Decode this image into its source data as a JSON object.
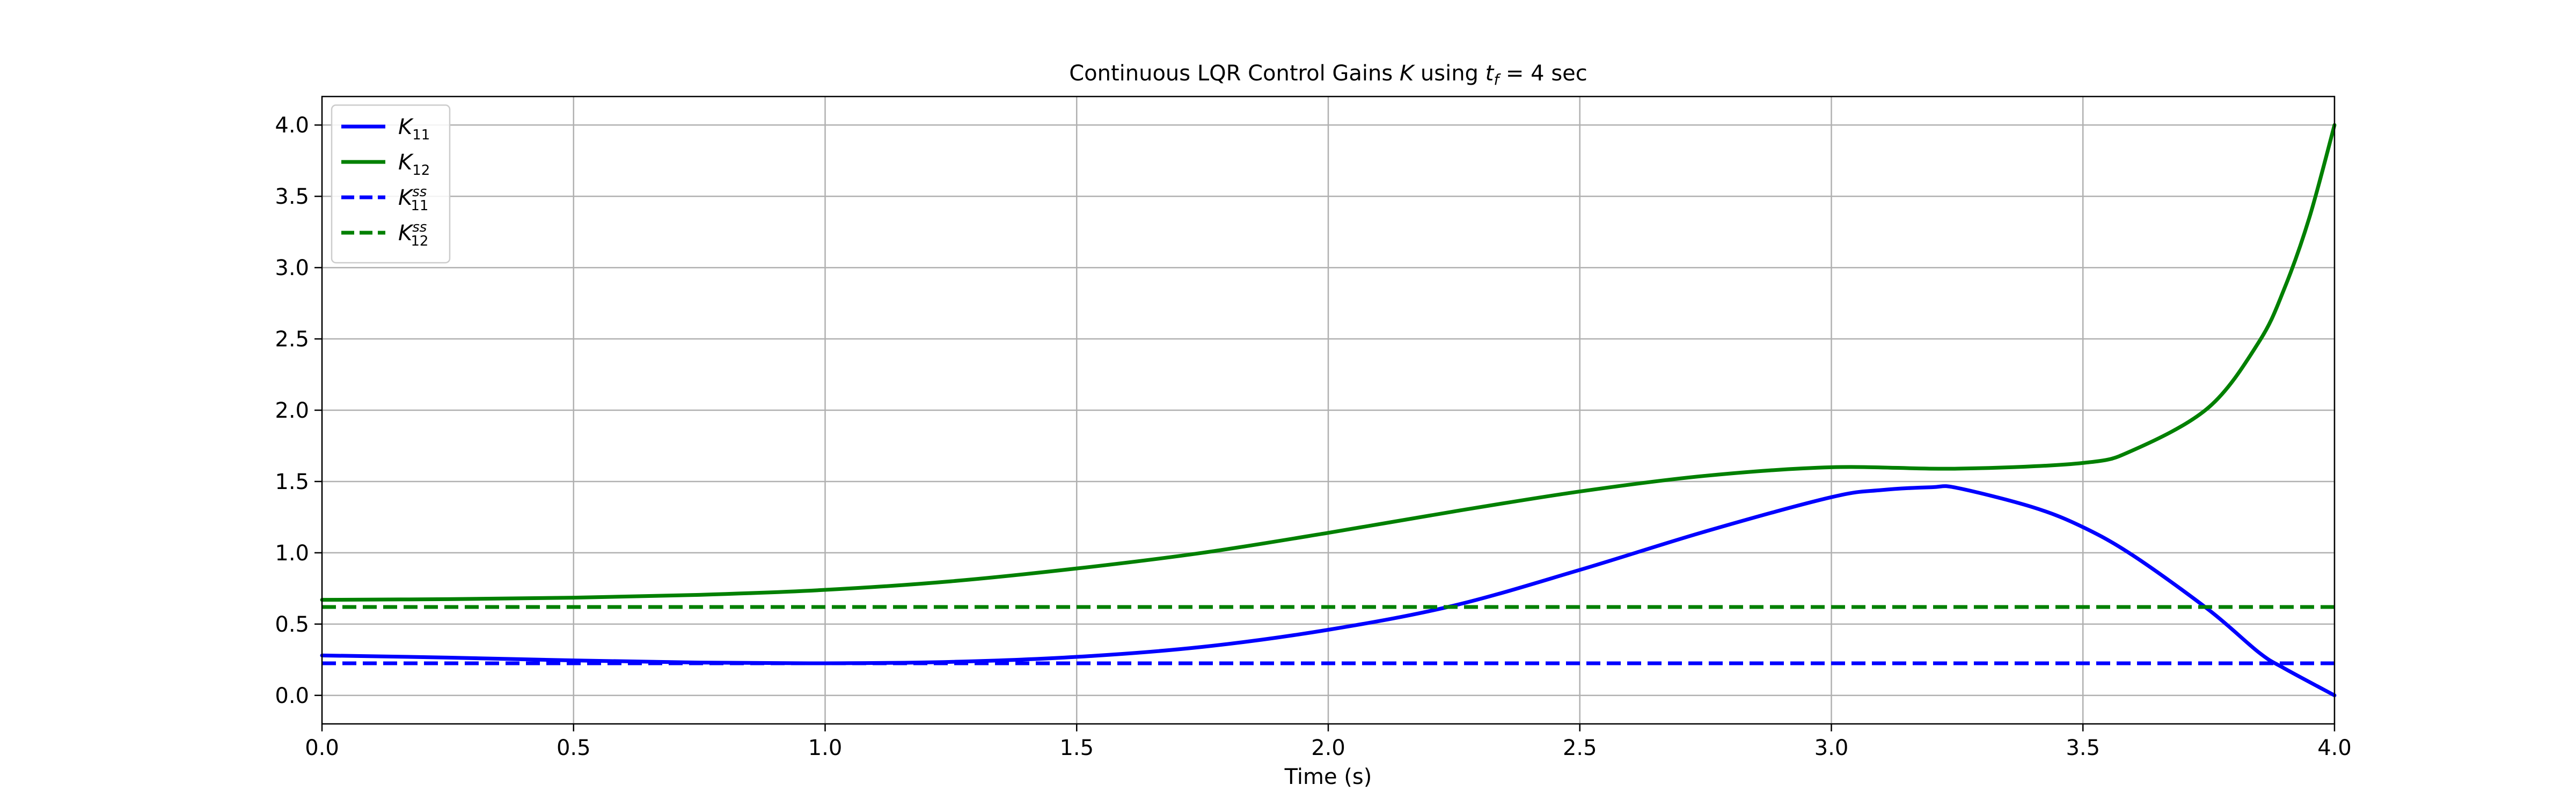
{
  "chart_data": {
    "type": "line",
    "title": {
      "prefix": "Continuous LQR Control Gains ",
      "k_symbol": "K",
      "middle": " using ",
      "t_symbol": "t",
      "t_subscript": "f",
      "suffix": " = 4 sec"
    },
    "xlabel": "Time (s)",
    "ylabel": "",
    "xlim": [
      0,
      4
    ],
    "ylim": [
      -0.2,
      4.2
    ],
    "x_ticks": [
      "0.0",
      "0.5",
      "1.0",
      "1.5",
      "2.0",
      "2.5",
      "3.0",
      "3.5",
      "4.0"
    ],
    "y_ticks": [
      "0.0",
      "0.5",
      "1.0",
      "1.5",
      "2.0",
      "2.5",
      "3.0",
      "3.5",
      "4.0"
    ],
    "grid": true,
    "legend_position": "top-left",
    "series": [
      {
        "name": "K11",
        "label_main": "K",
        "label_sub": "11",
        "label_sup": "",
        "color": "#0000ff",
        "linestyle": "solid",
        "x": [
          0,
          0.25,
          0.5,
          0.75,
          1.0,
          1.25,
          1.5,
          1.75,
          2.0,
          2.25,
          2.5,
          2.75,
          3.0,
          3.1,
          3.2,
          3.25,
          3.4,
          3.5,
          3.6,
          3.75,
          3.85,
          3.9,
          4.0
        ],
        "y": [
          0.28,
          0.265,
          0.245,
          0.23,
          0.225,
          0.235,
          0.27,
          0.34,
          0.46,
          0.63,
          0.88,
          1.15,
          1.39,
          1.44,
          1.46,
          1.455,
          1.32,
          1.18,
          0.98,
          0.6,
          0.3,
          0.19,
          0.0
        ]
      },
      {
        "name": "K12",
        "label_main": "K",
        "label_sub": "12",
        "label_sup": "",
        "color": "#008000",
        "linestyle": "solid",
        "x": [
          0,
          0.25,
          0.5,
          0.75,
          1.0,
          1.25,
          1.5,
          1.75,
          2.0,
          2.25,
          2.5,
          2.75,
          3.0,
          3.25,
          3.5,
          3.6,
          3.75,
          3.85,
          3.9,
          3.95,
          4.0
        ],
        "y": [
          0.67,
          0.675,
          0.685,
          0.705,
          0.74,
          0.8,
          0.89,
          1.0,
          1.14,
          1.29,
          1.43,
          1.54,
          1.6,
          1.59,
          1.63,
          1.72,
          2.02,
          2.48,
          2.85,
          3.35,
          4.0
        ]
      },
      {
        "name": "K11ss",
        "label_main": "K",
        "label_sub": "11",
        "label_sup": "ss",
        "color": "#0000ff",
        "linestyle": "dashed",
        "x": [
          0,
          4
        ],
        "y": [
          0.225,
          0.225
        ]
      },
      {
        "name": "K12ss",
        "label_main": "K",
        "label_sub": "12",
        "label_sup": "ss",
        "color": "#008000",
        "linestyle": "dashed",
        "x": [
          0,
          4
        ],
        "y": [
          0.62,
          0.62
        ]
      }
    ]
  }
}
